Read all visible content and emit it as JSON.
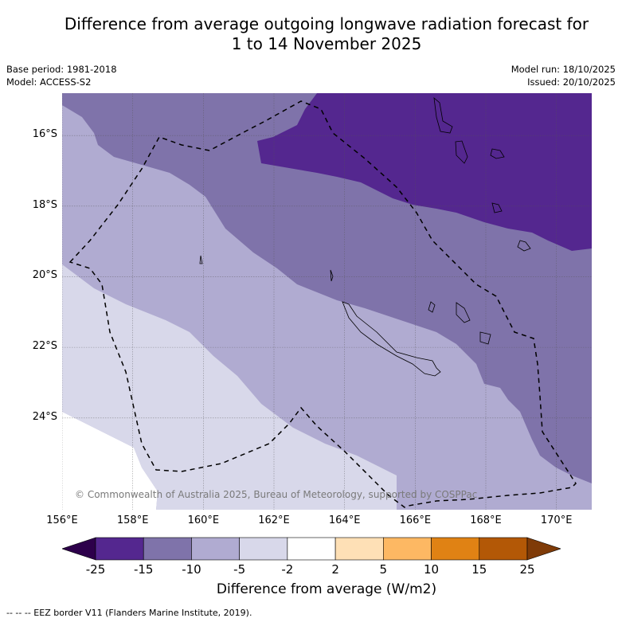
{
  "title": {
    "line1": "Difference from average outgoing longwave radiation forecast for",
    "line2": "1 to 14 November 2025"
  },
  "meta_left": {
    "base_period": "Base period: 1981-2018",
    "model": "Model: ACCESS-S2"
  },
  "meta_right": {
    "model_run": "Model run: 18/10/2025",
    "issued": "Issued: 20/10/2025"
  },
  "map": {
    "lon_range": [
      156,
      171
    ],
    "lat_range": [
      -14.8,
      -26.6
    ],
    "x_ticks": [
      "156°E",
      "158°E",
      "160°E",
      "162°E",
      "164°E",
      "166°E",
      "168°E",
      "170°E"
    ],
    "y_ticks": [
      "16°S",
      "18°S",
      "20°S",
      "22°S",
      "24°S"
    ],
    "copyright": "© Commonwealth of Australia 2025, Bureau of Meteorology, supported by COSPPac",
    "region_colors": {
      "lt_minus15": "#54278f",
      "minus15_to_minus10": "#7f73aa",
      "minus10_to_minus5": "#b0abd1",
      "minus5_to_minus2": "#d8d8ea",
      "minus2_to_2": "#ffffff"
    }
  },
  "colorbar": {
    "title": "Difference from average (W/m2)",
    "ticks": [
      "-25",
      "-15",
      "-10",
      "-5",
      "-2",
      "2",
      "5",
      "10",
      "15",
      "25"
    ],
    "under_color": "#2d004b",
    "over_color": "#7f3b08",
    "bins": [
      {
        "range": "-25 to -15",
        "color": "#54278f"
      },
      {
        "range": "-15 to -10",
        "color": "#7f73aa"
      },
      {
        "range": "-10 to -5",
        "color": "#b0abd1"
      },
      {
        "range": "-5 to -2",
        "color": "#d8d8ea"
      },
      {
        "range": "-2 to 2",
        "color": "#ffffff"
      },
      {
        "range": "2 to 5",
        "color": "#fee0b6"
      },
      {
        "range": "5 to 10",
        "color": "#fdb863"
      },
      {
        "range": "10 to 15",
        "color": "#e08214"
      },
      {
        "range": "15 to 25",
        "color": "#b35806"
      }
    ]
  },
  "footnote": "--  --  -- EEZ border V11 (Flanders Marine Institute, 2019)."
}
